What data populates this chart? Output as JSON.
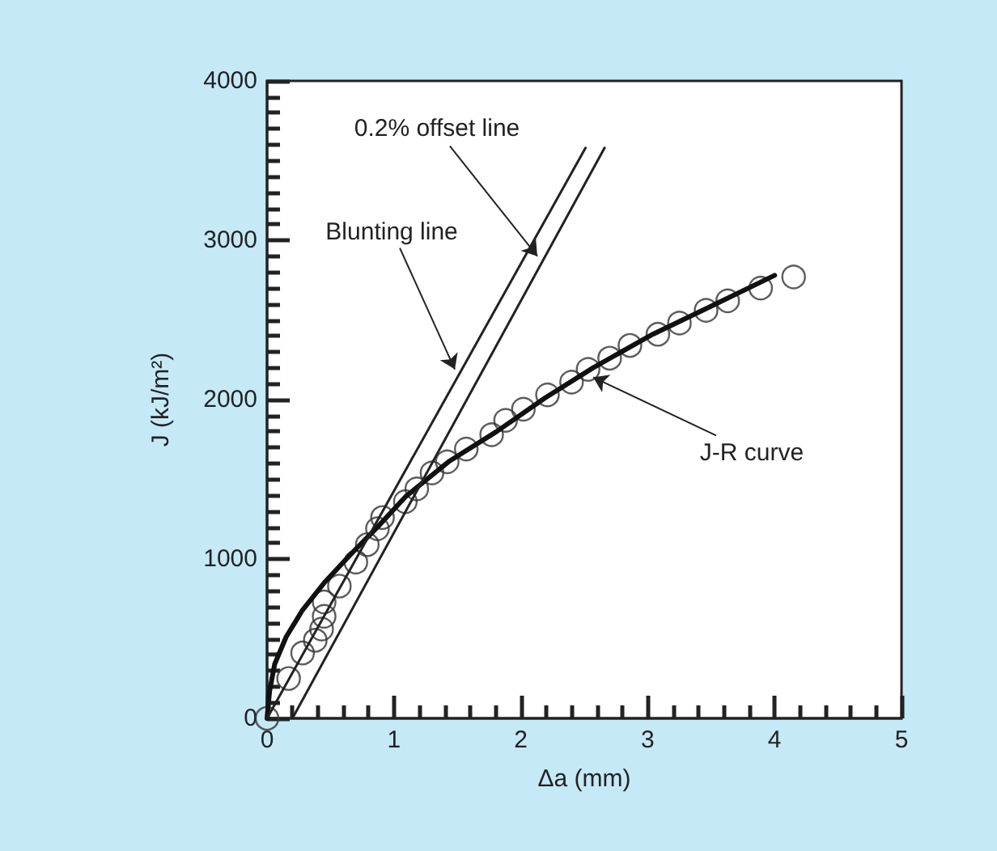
{
  "chart_data": {
    "type": "scatter",
    "xlabel": "Δa (mm)",
    "ylabel": "J (kJ/m²)",
    "xlim": [
      0,
      5
    ],
    "xticks": [
      0,
      1,
      2,
      3,
      4,
      5
    ],
    "ylim": [
      0,
      4000
    ],
    "yticks": [
      0,
      1000,
      2000,
      3000,
      4000
    ],
    "grid": false,
    "series": [
      {
        "marker": "circle",
        "color": "#333333",
        "x": [
          0,
          0.17,
          0.28,
          0.38,
          0.43,
          0.45,
          0.45,
          0.57,
          0.7,
          0.79,
          0.87,
          0.91,
          1.09,
          1.18,
          1.3,
          1.42,
          1.57,
          1.77,
          1.88,
          2.02,
          2.21,
          2.4,
          2.53,
          2.7,
          2.86,
          3.08,
          3.25,
          3.46,
          3.63,
          3.89,
          4.15
        ],
        "values": [
          0,
          250,
          410,
          490,
          560,
          640,
          730,
          830,
          980,
          1090,
          1190,
          1260,
          1360,
          1440,
          1540,
          1610,
          1690,
          1780,
          1870,
          1940,
          2030,
          2110,
          2190,
          2260,
          2340,
          2410,
          2480,
          2560,
          2620,
          2700,
          2770
        ]
      },
      {
        "type": "line",
        "marker": "none",
        "line_style": "solid",
        "color": "#111111",
        "x": [
          0,
          0.02,
          0.06,
          0.15,
          0.28,
          0.45,
          0.66,
          0.87,
          1.09,
          1.43,
          1.81,
          2.19,
          2.57,
          3.04,
          3.51,
          4.0
        ],
        "values": [
          0,
          170,
          340,
          510,
          680,
          850,
          1030,
          1200,
          1390,
          1610,
          1800,
          2010,
          2200,
          2410,
          2590,
          2780
        ]
      },
      {
        "type": "line",
        "marker": "none",
        "line_style": "solid",
        "color": "#222222",
        "x": [
          0,
          2.51
        ],
        "values": [
          0,
          3580
        ]
      },
      {
        "type": "line",
        "marker": "none",
        "line_style": "solid",
        "color": "#222222",
        "x": [
          0.2,
          2.66
        ],
        "values": [
          0,
          3580
        ]
      }
    ],
    "annotations": [
      {
        "text": "0.2% offset line",
        "x": 2.13,
        "y": 2900
      },
      {
        "text": "Blunting line",
        "x": 1.48,
        "y": 2190
      },
      {
        "text": "J-R curve",
        "x": 2.57,
        "y": 2140
      }
    ]
  }
}
